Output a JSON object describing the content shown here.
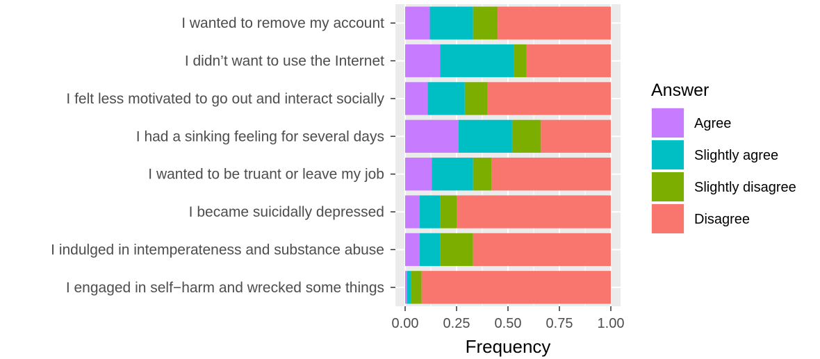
{
  "chart_data": {
    "type": "bar",
    "orientation": "horizontal",
    "stacked": true,
    "categories": [
      "I wanted to remove my account",
      "I didn’t want to use the Internet",
      "I felt less motivated to go out and interact socially",
      "I had a sinking feeling for several days",
      "I wanted to be truant or leave my job",
      "I became suicidally depressed",
      "I indulged in intemperateness and substance abuse",
      "I engaged in self−harm and wrecked some things"
    ],
    "series": [
      {
        "name": "Agree",
        "color": "#C77CFF",
        "values": [
          0.12,
          0.17,
          0.11,
          0.26,
          0.13,
          0.07,
          0.07,
          0.01
        ]
      },
      {
        "name": "Slightly agree",
        "color": "#00BFC4",
        "values": [
          0.21,
          0.36,
          0.18,
          0.26,
          0.2,
          0.1,
          0.1,
          0.02
        ]
      },
      {
        "name": "Slightly disagree",
        "color": "#7CAE00",
        "values": [
          0.12,
          0.06,
          0.11,
          0.14,
          0.09,
          0.08,
          0.16,
          0.05
        ]
      },
      {
        "name": "Disagree",
        "color": "#F8766D",
        "values": [
          0.55,
          0.41,
          0.6,
          0.34,
          0.58,
          0.75,
          0.67,
          0.92
        ]
      }
    ],
    "xlabel": "Frequency",
    "ylabel": "",
    "xlim": [
      0,
      1
    ],
    "xticks": [
      "0.00",
      "0.25",
      "0.50",
      "0.75",
      "1.00"
    ],
    "xtick_values": [
      0,
      0.25,
      0.5,
      0.75,
      1.0
    ],
    "grid": true,
    "panel_background": "#EBEBEB",
    "legend": {
      "title": "Answer",
      "position": "right"
    }
  }
}
